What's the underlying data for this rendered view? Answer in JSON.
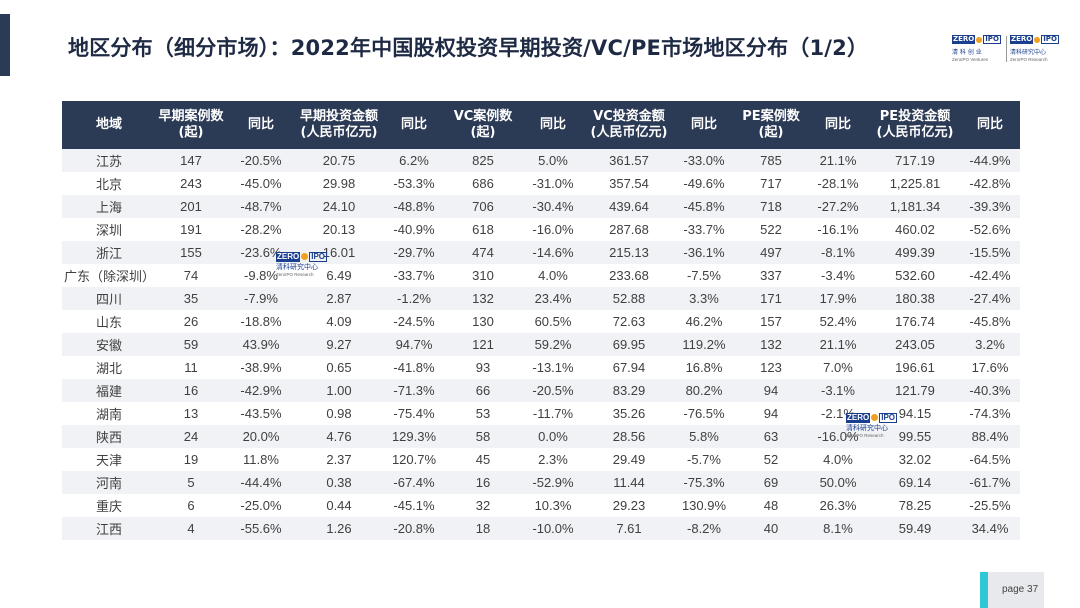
{
  "title": "地区分布（细分市场）：2022年中国股权投资早期投资/VC/PE市场地区分布（1/2）",
  "logo": {
    "left": {
      "brand_a": "ZERO",
      "brand_b": "IPO",
      "cn": "清 科 创 业",
      "en": "ZeroIPO Ventures"
    },
    "right": {
      "brand_a": "ZERO",
      "brand_b": "IPO",
      "cn": "清科研究中心",
      "en": "ZeroIPO Research"
    }
  },
  "watermark": {
    "brand_a": "ZERO",
    "brand_b": "IPO",
    "cn": "清科研究中心",
    "en": "ZeroIPO Research"
  },
  "table": {
    "headers": [
      {
        "line1": "地域",
        "line2": ""
      },
      {
        "line1": "早期案例数",
        "line2": "(起)"
      },
      {
        "line1": "同比",
        "line2": ""
      },
      {
        "line1": "早期投资金额",
        "line2": "(人民币亿元)"
      },
      {
        "line1": "同比",
        "line2": ""
      },
      {
        "line1": "VC案例数",
        "line2": "(起)"
      },
      {
        "line1": "同比",
        "line2": ""
      },
      {
        "line1": "VC投资金额",
        "line2": "(人民币亿元)"
      },
      {
        "line1": "同比",
        "line2": ""
      },
      {
        "line1": "PE案例数",
        "line2": "(起)"
      },
      {
        "line1": "同比",
        "line2": ""
      },
      {
        "line1": "PE投资金额",
        "line2": "(人民币亿元)"
      },
      {
        "line1": "同比",
        "line2": ""
      }
    ],
    "rows": [
      [
        "江苏",
        "147",
        "-20.5%",
        "20.75",
        "6.2%",
        "825",
        "5.0%",
        "361.57",
        "-33.0%",
        "785",
        "21.1%",
        "717.19",
        "-44.9%"
      ],
      [
        "北京",
        "243",
        "-45.0%",
        "29.98",
        "-53.3%",
        "686",
        "-31.0%",
        "357.54",
        "-49.6%",
        "717",
        "-28.1%",
        "1,225.81",
        "-42.8%"
      ],
      [
        "上海",
        "201",
        "-48.7%",
        "24.10",
        "-48.8%",
        "706",
        "-30.4%",
        "439.64",
        "-45.8%",
        "718",
        "-27.2%",
        "1,181.34",
        "-39.3%"
      ],
      [
        "深圳",
        "191",
        "-28.2%",
        "20.13",
        "-40.9%",
        "618",
        "-16.0%",
        "287.68",
        "-33.7%",
        "522",
        "-16.1%",
        "460.02",
        "-52.6%"
      ],
      [
        "浙江",
        "155",
        "-23.6%",
        "16.01",
        "-29.7%",
        "474",
        "-14.6%",
        "215.13",
        "-36.1%",
        "497",
        "-8.1%",
        "499.39",
        "-15.5%"
      ],
      [
        "广东（除深圳）",
        "74",
        "-9.8%",
        "6.49",
        "-33.7%",
        "310",
        "4.0%",
        "233.68",
        "-7.5%",
        "337",
        "-3.4%",
        "532.60",
        "-42.4%"
      ],
      [
        "四川",
        "35",
        "-7.9%",
        "2.87",
        "-1.2%",
        "132",
        "23.4%",
        "52.88",
        "3.3%",
        "171",
        "17.9%",
        "180.38",
        "-27.4%"
      ],
      [
        "山东",
        "26",
        "-18.8%",
        "4.09",
        "-24.5%",
        "130",
        "60.5%",
        "72.63",
        "46.2%",
        "157",
        "52.4%",
        "176.74",
        "-45.8%"
      ],
      [
        "安徽",
        "59",
        "43.9%",
        "9.27",
        "94.7%",
        "121",
        "59.2%",
        "69.95",
        "119.2%",
        "132",
        "21.1%",
        "243.05",
        "3.2%"
      ],
      [
        "湖北",
        "11",
        "-38.9%",
        "0.65",
        "-41.8%",
        "93",
        "-13.1%",
        "67.94",
        "16.8%",
        "123",
        "7.0%",
        "196.61",
        "17.6%"
      ],
      [
        "福建",
        "16",
        "-42.9%",
        "1.00",
        "-71.3%",
        "66",
        "-20.5%",
        "83.29",
        "80.2%",
        "94",
        "-3.1%",
        "121.79",
        "-40.3%"
      ],
      [
        "湖南",
        "13",
        "-43.5%",
        "0.98",
        "-75.4%",
        "53",
        "-11.7%",
        "35.26",
        "-76.5%",
        "94",
        "-2.1%",
        "94.15",
        "-74.3%"
      ],
      [
        "陕西",
        "24",
        "20.0%",
        "4.76",
        "129.3%",
        "58",
        "0.0%",
        "28.56",
        "5.8%",
        "63",
        "-16.0%",
        "99.55",
        "88.4%"
      ],
      [
        "天津",
        "19",
        "11.8%",
        "2.37",
        "120.7%",
        "45",
        "2.3%",
        "29.49",
        "-5.7%",
        "52",
        "4.0%",
        "32.02",
        "-64.5%"
      ],
      [
        "河南",
        "5",
        "-44.4%",
        "0.38",
        "-67.4%",
        "16",
        "-52.9%",
        "11.44",
        "-75.3%",
        "69",
        "50.0%",
        "69.14",
        "-61.7%"
      ],
      [
        "重庆",
        "6",
        "-25.0%",
        "0.44",
        "-45.1%",
        "32",
        "10.3%",
        "29.23",
        "130.9%",
        "48",
        "26.3%",
        "78.25",
        "-25.5%"
      ],
      [
        "江西",
        "4",
        "-55.6%",
        "1.26",
        "-20.8%",
        "18",
        "-10.0%",
        "7.61",
        "-8.2%",
        "40",
        "8.1%",
        "59.49",
        "34.4%"
      ]
    ]
  },
  "footer": {
    "page_label": "page  37"
  }
}
